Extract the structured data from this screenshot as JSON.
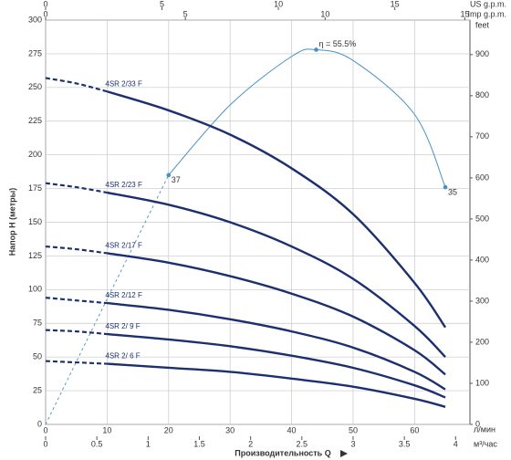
{
  "chart_data": {
    "type": "line",
    "y_label": "Напор H (метры)",
    "x_label": "Производительность Q",
    "x_unit": "л/мин",
    "xlim": [
      0,
      69
    ],
    "xticks": [
      0,
      10,
      20,
      30,
      40,
      50,
      60
    ],
    "ylim": [
      0,
      300
    ],
    "yticks": [
      0,
      25,
      50,
      75,
      100,
      125,
      150,
      175,
      200,
      225,
      250,
      275,
      300
    ],
    "grid": true,
    "x2_unit": "м³/час",
    "x2lim": [
      0,
      4.14
    ],
    "x2ticks": [
      0,
      0.5,
      1,
      1.5,
      2,
      2.5,
      3,
      3.5,
      4
    ],
    "top_axes": [
      {
        "unit": "US g.p.m.",
        "lim": [
          0,
          18.23
        ],
        "ticks": [
          0,
          5,
          10,
          15
        ]
      },
      {
        "unit": "Imp g.p.m.",
        "lim": [
          0,
          15.18
        ],
        "ticks": [
          0,
          5,
          10,
          15
        ]
      }
    ],
    "y2_label": "feet",
    "y2lim": [
      0,
      984
    ],
    "y2ticks": [
      0,
      100,
      200,
      300,
      400,
      500,
      600,
      700,
      800,
      900
    ],
    "x": [
      0,
      5,
      10,
      20,
      30,
      40,
      50,
      60,
      65
    ],
    "series": [
      {
        "name": "4SR 2/33 F",
        "color": "#1c2f6e",
        "dashed_below_x": 10,
        "values": [
          257,
          253,
          247,
          233,
          215,
          190,
          156,
          105,
          72
        ]
      },
      {
        "name": "4SR 2/23 F",
        "color": "#1c2f6e",
        "dashed_below_x": 10,
        "values": [
          179,
          176,
          172,
          163,
          150,
          132,
          108,
          73,
          50
        ]
      },
      {
        "name": "4SR 2/17 F",
        "color": "#1c2f6e",
        "dashed_below_x": 10,
        "values": [
          132,
          130,
          127,
          120,
          110,
          97,
          80,
          55,
          37
        ]
      },
      {
        "name": "4SR 2/12 F",
        "color": "#1c2f6e",
        "dashed_below_x": 10,
        "values": [
          94,
          92,
          90,
          85,
          78,
          69,
          57,
          39,
          26
        ]
      },
      {
        "name": "4SR 2/ 9 F",
        "color": "#1c2f6e",
        "dashed_below_x": 10,
        "values": [
          70,
          69,
          67,
          63,
          58,
          51,
          42,
          29,
          20
        ]
      },
      {
        "name": "4SR 2/ 6 F",
        "color": "#1c2f6e",
        "dashed_below_x": 10,
        "values": [
          47,
          46,
          45,
          42,
          39,
          34,
          28,
          19,
          13
        ]
      }
    ],
    "efficiency": {
      "color": "#4a8fc4",
      "dashed_below_x": 20,
      "x": [
        0,
        10,
        20,
        30,
        40,
        44,
        50,
        60,
        65
      ],
      "values": [
        0,
        93,
        185,
        237,
        273,
        278,
        270,
        230,
        176
      ],
      "points": {
        "x": [
          20,
          44,
          65
        ],
        "values": [
          185,
          278,
          176
        ],
        "labels": [
          "37",
          "η = 55.5%",
          "35"
        ]
      }
    }
  }
}
